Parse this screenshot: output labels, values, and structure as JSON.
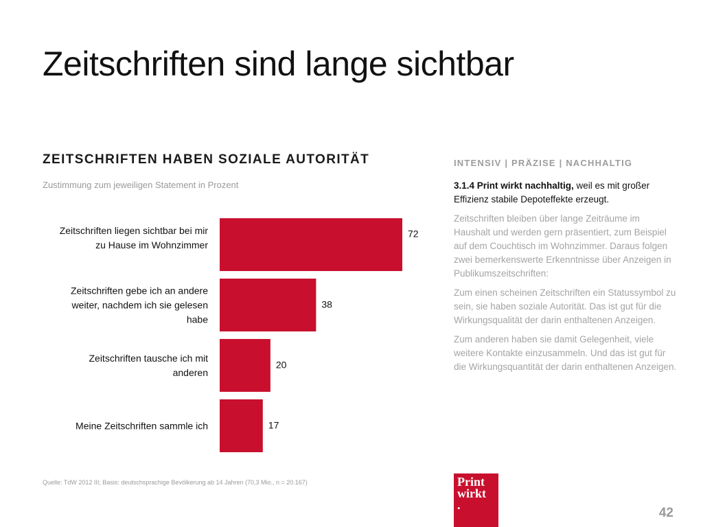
{
  "slide": {
    "title": "Zeitschriften sind lange sichtbar",
    "page_number": "42"
  },
  "left": {
    "heading": "ZEITSCHRIFTEN HABEN SOZIALE AUTORITÄT",
    "subtitle": "Zustimmung zum jeweiligen Statement in Prozent",
    "source": "Quelle: TdW 2012 III; Basis: deutschsprachige Bevölkerung ab 14 Jahren (70,3 Mio., n = 20.167)"
  },
  "chart_data": {
    "type": "bar",
    "orientation": "horizontal",
    "categories": [
      [
        "Zeitschriften liegen sichtbar bei mir",
        "zu Hause im Wohnzimmer"
      ],
      [
        "Zeitschriften gebe ich an andere",
        "weiter, nachdem ich sie gelesen",
        "habe"
      ],
      [
        "Zeitschriften tausche ich mit",
        "anderen"
      ],
      [
        "Meine Zeitschriften sammle ich"
      ]
    ],
    "values": [
      72,
      38,
      20,
      17
    ],
    "xlim": [
      0,
      72
    ],
    "grid": false,
    "bar_color": "#c8102e"
  },
  "right": {
    "tagline": "INTENSIV | PRÄZISE | NACHHALTIG",
    "lead_bold": "3.1.4 Print wirkt nachhaltig,",
    "lead_rest": " weil es mit großer Effizienz stabile Depoteffekte erzeugt.",
    "paragraphs": [
      "Zeitschriften bleiben über lange Zeiträume im Haushalt und werden gern präsentiert, zum Beispiel auf dem Couchtisch im Wohnzimmer. Daraus folgen zwei bemerkenswerte Erkenntnisse über Anzeigen in Publikumszeitschriften:",
      "Zum einen scheinen Zeitschriften ein Statussymbol zu sein, sie haben soziale Autorität. Das ist gut für die Wirkungsqualität der darin enthaltenen Anzeigen.",
      "Zum anderen haben sie damit Gelegenheit, viele weitere Kontakte einzusammeln. Und das ist gut für die Wirkungsquantität der darin enthaltenen Anzeigen."
    ]
  },
  "logo": {
    "line1": "Print",
    "line2": "wirkt",
    "dot": "."
  }
}
